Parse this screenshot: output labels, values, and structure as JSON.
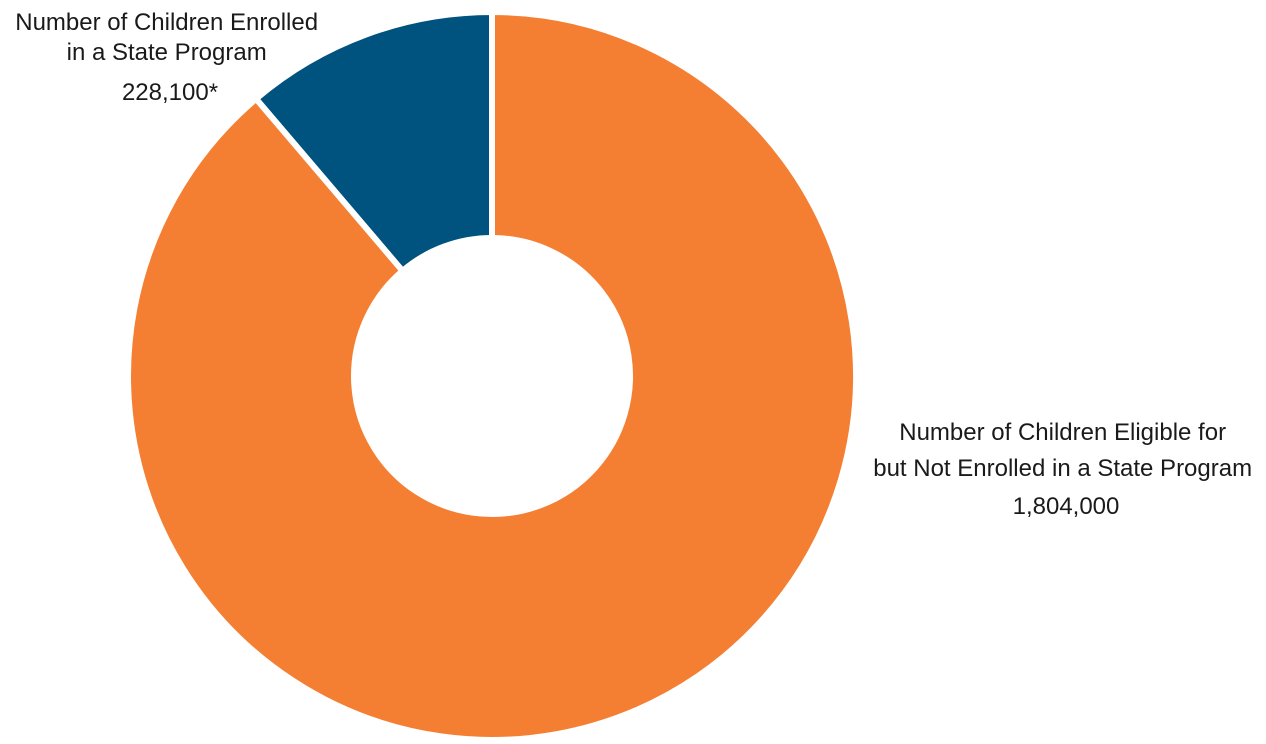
{
  "chart_data": {
    "type": "pie",
    "variant": "donut",
    "title": "",
    "legend": "none",
    "slices": [
      {
        "label_lines": [
          "Number of Children Enrolled",
          "in a State Program",
          "228,100*"
        ],
        "value": 228100,
        "color": "#00537f"
      },
      {
        "label_lines": [
          "Number of Children Eligible for",
          "but Not Enrolled in a State Program",
          "1,804,000"
        ],
        "value": 1804000,
        "color": "#f47f33"
      }
    ]
  }
}
